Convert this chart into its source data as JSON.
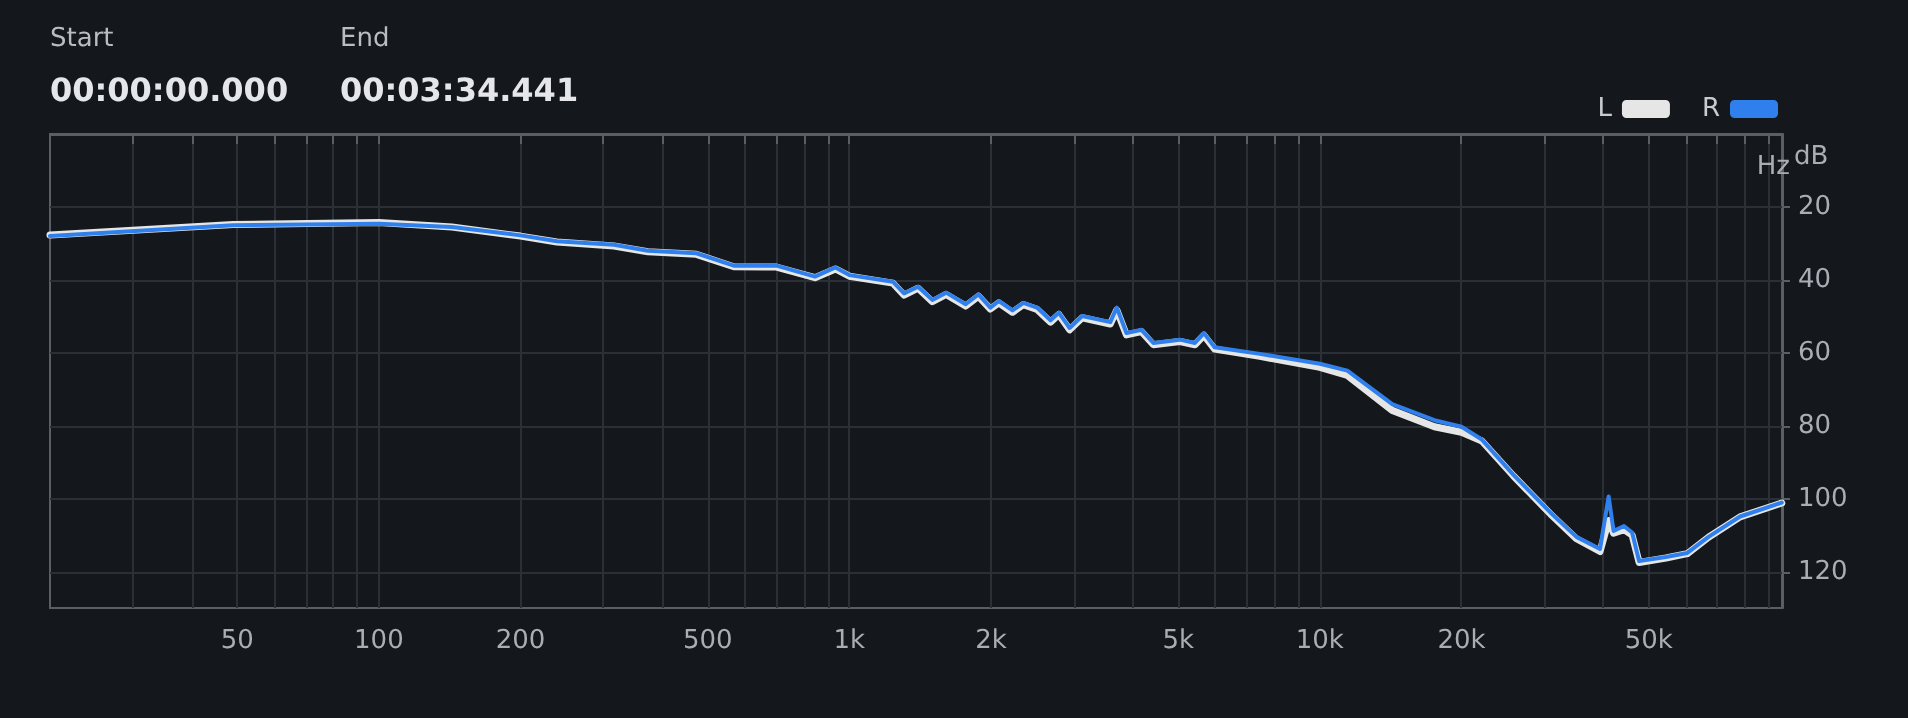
{
  "chart_data": {
    "type": "line",
    "xlabel": "Hz",
    "ylabel": "dB",
    "annotations": [
      "Start",
      "00:00:00.000",
      "End",
      "00:03:34.441"
    ],
    "x": [
      20,
      49,
      100,
      143,
      200,
      239,
      316,
      373,
      473,
      568,
      700,
      845,
      934,
      1000,
      1237,
      1307,
      1400,
      1501,
      1606,
      1767,
      1881,
      1994,
      2078,
      2222,
      2343,
      2505,
      2677,
      2787,
      2939,
      3125,
      3586,
      3702,
      3881,
      4177,
      4428,
      5042,
      5426,
      5671,
      5976,
      7455,
      10000,
      11440,
      14250,
      17520,
      20000,
      22100,
      25800,
      30900,
      35100,
      39400,
      41100,
      42100,
      44300,
      46100,
      47700,
      54400,
      60400,
      67000,
      78200,
      95900
    ],
    "series": [
      {
        "name": "L",
        "color": "#e6e6e6",
        "values": [
          27.7,
          24.8,
          24.3,
          25.5,
          28,
          29.6,
          30.7,
          32.3,
          33,
          36.4,
          36.5,
          39.4,
          37,
          39,
          40.9,
          44.2,
          42.3,
          46,
          44,
          47.2,
          44.5,
          48,
          46.3,
          48.9,
          46.8,
          48.1,
          51.6,
          49.5,
          53.7,
          50.4,
          52.1,
          48.3,
          55.1,
          54.2,
          57.8,
          56.9,
          57.8,
          55.2,
          59,
          61,
          64,
          66.2,
          75.8,
          80.3,
          81.8,
          84.2,
          93.8,
          104.2,
          111,
          114.5,
          106,
          109.5,
          108.5,
          110,
          117.5,
          116.3,
          115.1,
          110.6,
          105,
          101.2
        ]
      },
      {
        "name": "R",
        "color": "#2f80ed",
        "values": [
          28,
          25,
          24.6,
          25.5,
          27.8,
          29.4,
          30.4,
          32,
          32.7,
          36.1,
          36.1,
          39.1,
          36.6,
          38.7,
          40.5,
          43.7,
          41.9,
          45.5,
          43.5,
          46.7,
          44,
          47.6,
          45.8,
          48.4,
          46.3,
          47.6,
          51.1,
          49,
          53.2,
          49.9,
          51.6,
          47.6,
          54.6,
          53.7,
          57.3,
          56.4,
          57.3,
          54.6,
          58.5,
          60.3,
          63,
          64.9,
          74.1,
          78.5,
          80.3,
          83.8,
          93.5,
          103.8,
          110.5,
          113.8,
          99.4,
          108.9,
          107.5,
          109.3,
          117.1,
          116,
          114.9,
          110.5,
          104.9,
          101.1
        ]
      }
    ],
    "xlim": [
      20,
      96000
    ],
    "xticks": [
      {
        "value": 30,
        "label": null
      },
      {
        "value": 40,
        "label": null
      },
      {
        "value": 50,
        "label": "50"
      },
      {
        "value": 60,
        "label": null
      },
      {
        "value": 70,
        "label": null
      },
      {
        "value": 80,
        "label": null
      },
      {
        "value": 90,
        "label": null
      },
      {
        "value": 100,
        "label": "100"
      },
      {
        "value": 200,
        "label": "200"
      },
      {
        "value": 300,
        "label": null
      },
      {
        "value": 400,
        "label": null
      },
      {
        "value": 500,
        "label": "500"
      },
      {
        "value": 600,
        "label": null
      },
      {
        "value": 700,
        "label": null
      },
      {
        "value": 800,
        "label": null
      },
      {
        "value": 900,
        "label": null
      },
      {
        "value": 1000,
        "label": "1k"
      },
      {
        "value": 2000,
        "label": "2k"
      },
      {
        "value": 3000,
        "label": null
      },
      {
        "value": 4000,
        "label": null
      },
      {
        "value": 5000,
        "label": "5k"
      },
      {
        "value": 6000,
        "label": null
      },
      {
        "value": 7000,
        "label": null
      },
      {
        "value": 8000,
        "label": null
      },
      {
        "value": 9000,
        "label": null
      },
      {
        "value": 10000,
        "label": "10k"
      },
      {
        "value": 20000,
        "label": "20k"
      },
      {
        "value": 30000,
        "label": null
      },
      {
        "value": 40000,
        "label": null
      },
      {
        "value": 50000,
        "label": "50k"
      },
      {
        "value": 60000,
        "label": null
      },
      {
        "value": 70000,
        "label": null
      },
      {
        "value": 80000,
        "label": null
      },
      {
        "value": 90000,
        "label": null
      }
    ],
    "ylim": [
      130,
      0
    ],
    "yticks": [
      20,
      40,
      60,
      80,
      100,
      120
    ],
    "log": "x",
    "grid": true,
    "legend": "top right",
    "marker": "none",
    "line_style": "solid"
  }
}
